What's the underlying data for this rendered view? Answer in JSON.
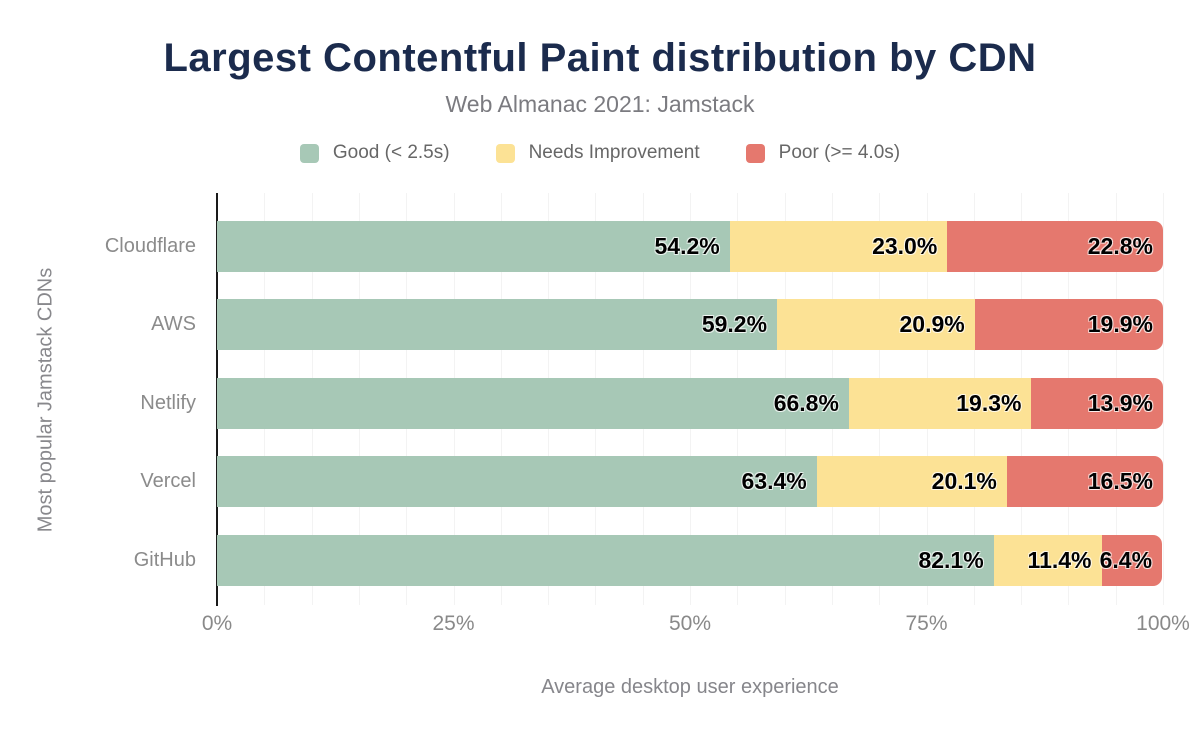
{
  "chart_data": {
    "type": "bar",
    "stacked": true,
    "orientation": "horizontal",
    "title": "Largest Contentful Paint distribution by CDN",
    "subtitle": "Web Almanac 2021: Jamstack",
    "categories": [
      "Cloudflare",
      "AWS",
      "Netlify",
      "Vercel",
      "GitHub"
    ],
    "series": [
      {
        "name": "Good (< 2.5s)",
        "color": "#a7c8b6",
        "values": [
          54.2,
          59.2,
          66.8,
          63.4,
          82.1
        ]
      },
      {
        "name": "Needs Improvement",
        "color": "#fce295",
        "values": [
          23.0,
          20.9,
          19.3,
          20.1,
          11.4
        ]
      },
      {
        "name": "Poor (>= 4.0s)",
        "color": "#e5786e",
        "values": [
          22.8,
          19.9,
          13.9,
          16.5,
          6.4
        ]
      }
    ],
    "xlabel": "Average desktop user experience",
    "ylabel": "Most popular Jamstack CDNs",
    "x_ticks": [
      "0%",
      "25%",
      "50%",
      "75%",
      "100%"
    ],
    "xlim": [
      0,
      100
    ],
    "grid": "faint vertical minor gridlines every 5%",
    "legend_position": "top-center",
    "data_label_format": "x.x%",
    "style": {
      "title_color": "#1b2b4d",
      "subtitle_color": "#7b7b80",
      "axis_text_color": "#898989",
      "legend_text_color": "#676767",
      "axis_line_color": "#1a1a1a",
      "gridline_color": "#f3f3f3",
      "background_color": "#ffffff",
      "data_label_color": "#000000"
    }
  }
}
